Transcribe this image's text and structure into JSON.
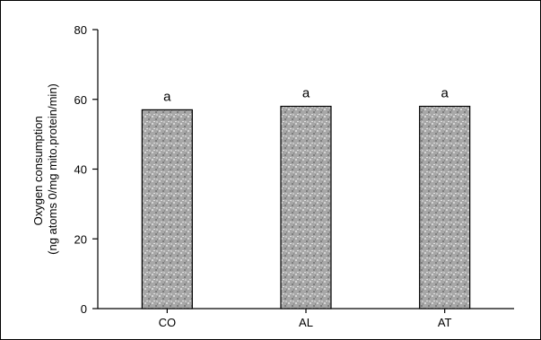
{
  "chart_data": {
    "type": "bar",
    "title": "",
    "xlabel": "",
    "ylabel": [
      "Oxygen consumption",
      "(ng atoms 0/mg mito.protein/min)"
    ],
    "categories": [
      "CO",
      "AL",
      "AT"
    ],
    "values": [
      57,
      58,
      58
    ],
    "annotations": [
      "a",
      "a",
      "a"
    ],
    "ylim": [
      0,
      80
    ],
    "yticks": [
      "0",
      "20",
      "40",
      "60",
      "80"
    ],
    "grid": false,
    "legend": "none",
    "colors": {
      "bar_fill": "#a9a9a9",
      "bar_stroke": "#000000",
      "axis": "#000000"
    }
  }
}
